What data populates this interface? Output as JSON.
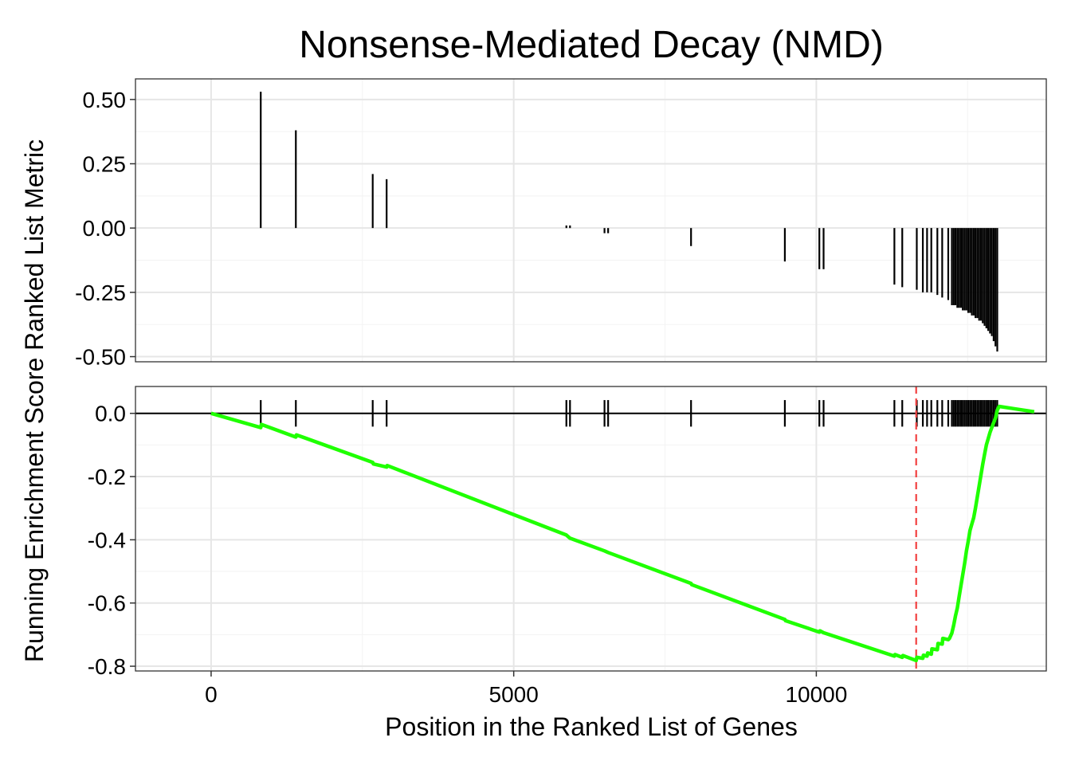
{
  "chart_data": {
    "type": "line",
    "title": "Nonsense-Mediated Decay (NMD)",
    "xlabel": "Position in the Ranked List of Genes",
    "ylabel": "Running Enrichment Score Ranked List Metric",
    "xlim": [
      -1250,
      13800
    ],
    "x_ticks": [
      0,
      5000,
      10000
    ],
    "x_tick_labels": [
      "0",
      "5000",
      "10000"
    ],
    "grid": true,
    "panels": [
      {
        "name": "ranked-list-metric",
        "type": "bar",
        "ylim": [
          -0.52,
          0.58
        ],
        "y_ticks": [
          0.5,
          0.25,
          0.0,
          -0.25,
          -0.5
        ],
        "y_tick_labels": [
          "0.50",
          "0.25",
          "0.00",
          "-0.25",
          "-0.50"
        ],
        "bars": [
          {
            "x": 820,
            "y": 0.53
          },
          {
            "x": 1400,
            "y": 0.38
          },
          {
            "x": 2670,
            "y": 0.21
          },
          {
            "x": 2900,
            "y": 0.19
          },
          {
            "x": 5870,
            "y": 0.01
          },
          {
            "x": 5930,
            "y": 0.01
          },
          {
            "x": 6500,
            "y": -0.02
          },
          {
            "x": 6560,
            "y": -0.02
          },
          {
            "x": 7930,
            "y": -0.07
          },
          {
            "x": 9480,
            "y": -0.13
          },
          {
            "x": 10050,
            "y": -0.16
          },
          {
            "x": 10120,
            "y": -0.16
          },
          {
            "x": 11290,
            "y": -0.22
          },
          {
            "x": 11420,
            "y": -0.23
          },
          {
            "x": 11660,
            "y": -0.24
          },
          {
            "x": 11760,
            "y": -0.25
          },
          {
            "x": 11830,
            "y": -0.25
          },
          {
            "x": 11900,
            "y": -0.25
          },
          {
            "x": 12000,
            "y": -0.26
          },
          {
            "x": 12080,
            "y": -0.27
          },
          {
            "x": 12180,
            "y": -0.28
          },
          {
            "x": 12240,
            "y": -0.3
          },
          {
            "x": 12270,
            "y": -0.3
          },
          {
            "x": 12300,
            "y": -0.3
          },
          {
            "x": 12330,
            "y": -0.31
          },
          {
            "x": 12360,
            "y": -0.31
          },
          {
            "x": 12390,
            "y": -0.31
          },
          {
            "x": 12420,
            "y": -0.32
          },
          {
            "x": 12450,
            "y": -0.32
          },
          {
            "x": 12480,
            "y": -0.32
          },
          {
            "x": 12510,
            "y": -0.33
          },
          {
            "x": 12540,
            "y": -0.33
          },
          {
            "x": 12570,
            "y": -0.34
          },
          {
            "x": 12600,
            "y": -0.34
          },
          {
            "x": 12630,
            "y": -0.35
          },
          {
            "x": 12660,
            "y": -0.35
          },
          {
            "x": 12690,
            "y": -0.36
          },
          {
            "x": 12720,
            "y": -0.36
          },
          {
            "x": 12750,
            "y": -0.37
          },
          {
            "x": 12780,
            "y": -0.38
          },
          {
            "x": 12810,
            "y": -0.39
          },
          {
            "x": 12840,
            "y": -0.4
          },
          {
            "x": 12870,
            "y": -0.41
          },
          {
            "x": 12900,
            "y": -0.42
          },
          {
            "x": 12930,
            "y": -0.44
          },
          {
            "x": 12960,
            "y": -0.46
          },
          {
            "x": 12990,
            "y": -0.48
          }
        ]
      },
      {
        "name": "running-enrichment-score",
        "type": "line",
        "ylim": [
          -0.815,
          0.085
        ],
        "y_ticks": [
          0.0,
          -0.2,
          -0.4,
          -0.6,
          -0.8
        ],
        "y_tick_labels": [
          "0.0",
          "-0.2",
          "-0.4",
          "-0.6",
          "-0.8"
        ],
        "hline_y": 0.0,
        "es_peak_x": 11650,
        "series": [
          {
            "color": "#1fff00",
            "points": [
              [
                0,
                0.0
              ],
              [
                820,
                -0.045
              ],
              [
                830,
                -0.035
              ],
              [
                1400,
                -0.075
              ],
              [
                1410,
                -0.068
              ],
              [
                2670,
                -0.155
              ],
              [
                2680,
                -0.16
              ],
              [
                2900,
                -0.17
              ],
              [
                2910,
                -0.165
              ],
              [
                5870,
                -0.385
              ],
              [
                5930,
                -0.395
              ],
              [
                6500,
                -0.435
              ],
              [
                6560,
                -0.44
              ],
              [
                7930,
                -0.538
              ],
              [
                7940,
                -0.542
              ],
              [
                9480,
                -0.652
              ],
              [
                9490,
                -0.656
              ],
              [
                10050,
                -0.692
              ],
              [
                10060,
                -0.688
              ],
              [
                10120,
                -0.694
              ],
              [
                11290,
                -0.768
              ],
              [
                11300,
                -0.763
              ],
              [
                11420,
                -0.772
              ],
              [
                11430,
                -0.766
              ],
              [
                11650,
                -0.782
              ],
              [
                11660,
                -0.772
              ],
              [
                11760,
                -0.775
              ],
              [
                11770,
                -0.765
              ],
              [
                11830,
                -0.768
              ],
              [
                11840,
                -0.758
              ],
              [
                11900,
                -0.762
              ],
              [
                11910,
                -0.745
              ],
              [
                12000,
                -0.748
              ],
              [
                12010,
                -0.728
              ],
              [
                12080,
                -0.73
              ],
              [
                12090,
                -0.712
              ],
              [
                12180,
                -0.716
              ],
              [
                12200,
                -0.712
              ],
              [
                12240,
                -0.695
              ],
              [
                12270,
                -0.67
              ],
              [
                12300,
                -0.64
              ],
              [
                12330,
                -0.615
              ],
              [
                12360,
                -0.58
              ],
              [
                12390,
                -0.545
              ],
              [
                12420,
                -0.51
              ],
              [
                12450,
                -0.475
              ],
              [
                12480,
                -0.435
              ],
              [
                12510,
                -0.405
              ],
              [
                12540,
                -0.37
              ],
              [
                12570,
                -0.35
              ],
              [
                12600,
                -0.33
              ],
              [
                12630,
                -0.3
              ],
              [
                12660,
                -0.265
              ],
              [
                12690,
                -0.23
              ],
              [
                12720,
                -0.195
              ],
              [
                12750,
                -0.16
              ],
              [
                12780,
                -0.13
              ],
              [
                12810,
                -0.1
              ],
              [
                12840,
                -0.08
              ],
              [
                12870,
                -0.06
              ],
              [
                12900,
                -0.045
              ],
              [
                12930,
                -0.03
              ],
              [
                12960,
                -0.015
              ],
              [
                12990,
                0.01
              ],
              [
                13020,
                0.022
              ],
              [
                13600,
                0.005
              ]
            ]
          }
        ]
      }
    ]
  }
}
